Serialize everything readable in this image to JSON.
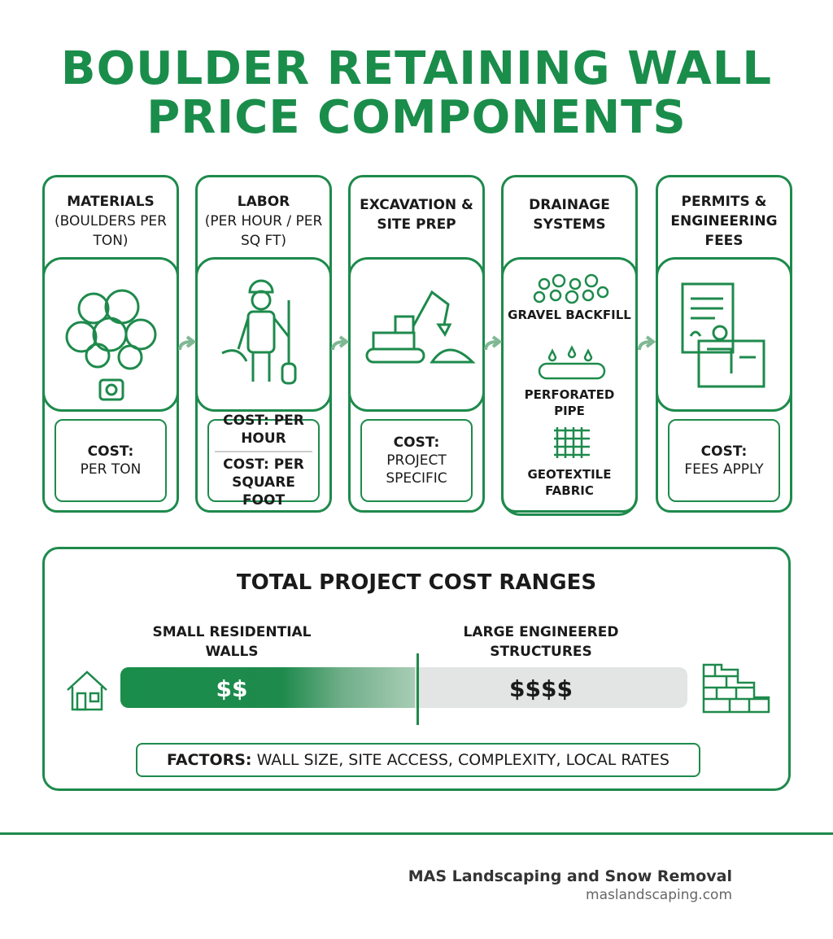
{
  "header": {
    "title": [
      "BOULDER RETAINING WALL",
      "PRICE COMPONENTS"
    ]
  },
  "components": [
    {
      "name": "MATERIALS",
      "detail": "(BOULDERS PER TON)",
      "cost": [
        "COST:",
        "PER TON"
      ]
    },
    {
      "name": "LABOR",
      "detail": "(PER HOUR / PER SQ FT)",
      "cost": [
        "COST: PER HOUR",
        "COST: PER SQUARE FOOT"
      ]
    },
    {
      "name": "EXCAVATION & SITE PREP",
      "cost": [
        "COST:",
        "PROJECT SPECIFIC"
      ]
    },
    {
      "name": "DRAINAGE SYSTEMS",
      "items": [
        "GRAVEL BACKFILL",
        "PERFORATED PIPE",
        "GEOTEXTILE FABRIC"
      ]
    },
    {
      "name": "PERMITS & ENGINEERING FEES",
      "cost": [
        "COST:",
        "FEES APPLY"
      ]
    }
  ],
  "total": {
    "title": "TOTAL PROJECT COST RANGES",
    "low_label": "SMALL RESIDENTIAL WALLS",
    "high_label": "LARGE ENGINEERED STRUCTURES",
    "low_value": "$$",
    "high_value": "$$$$",
    "factors_label": "FACTORS:",
    "factors": "WALL SIZE, SITE ACCESS, COMPLEXITY, LOCAL RATES"
  },
  "footer": {
    "company": "MAS Landscaping and Snow Removal",
    "url": "maslandscaping.com"
  }
}
